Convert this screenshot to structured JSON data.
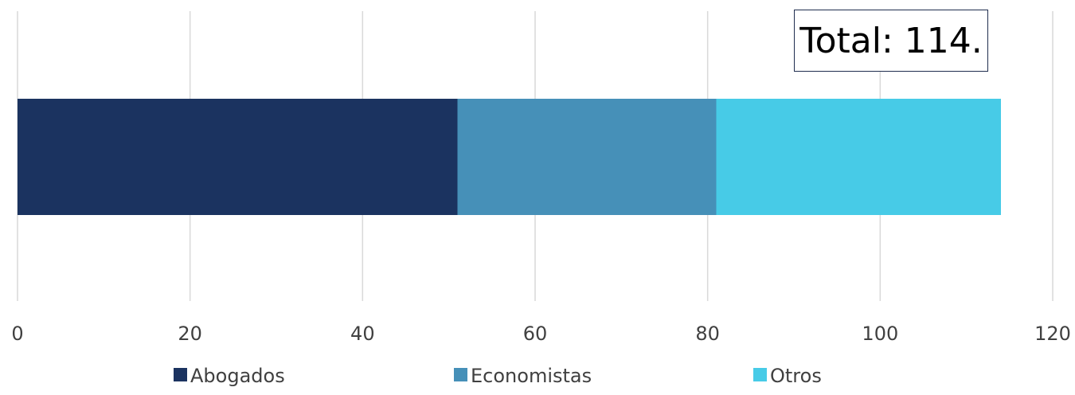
{
  "chart_data": {
    "type": "bar",
    "orientation": "horizontal",
    "stacked": true,
    "categories": [
      ""
    ],
    "series": [
      {
        "name": "Abogados",
        "values": [
          51
        ],
        "color": "#1b3360"
      },
      {
        "name": "Economistas",
        "values": [
          30
        ],
        "color": "#4690b8"
      },
      {
        "name": "Otros",
        "values": [
          33
        ],
        "color": "#47cbe7"
      }
    ],
    "xlim": [
      0,
      120
    ],
    "xticks": [
      0,
      20,
      40,
      60,
      80,
      100,
      120
    ],
    "grid": true,
    "legend": "bottom",
    "annotation": "Total: 114."
  }
}
